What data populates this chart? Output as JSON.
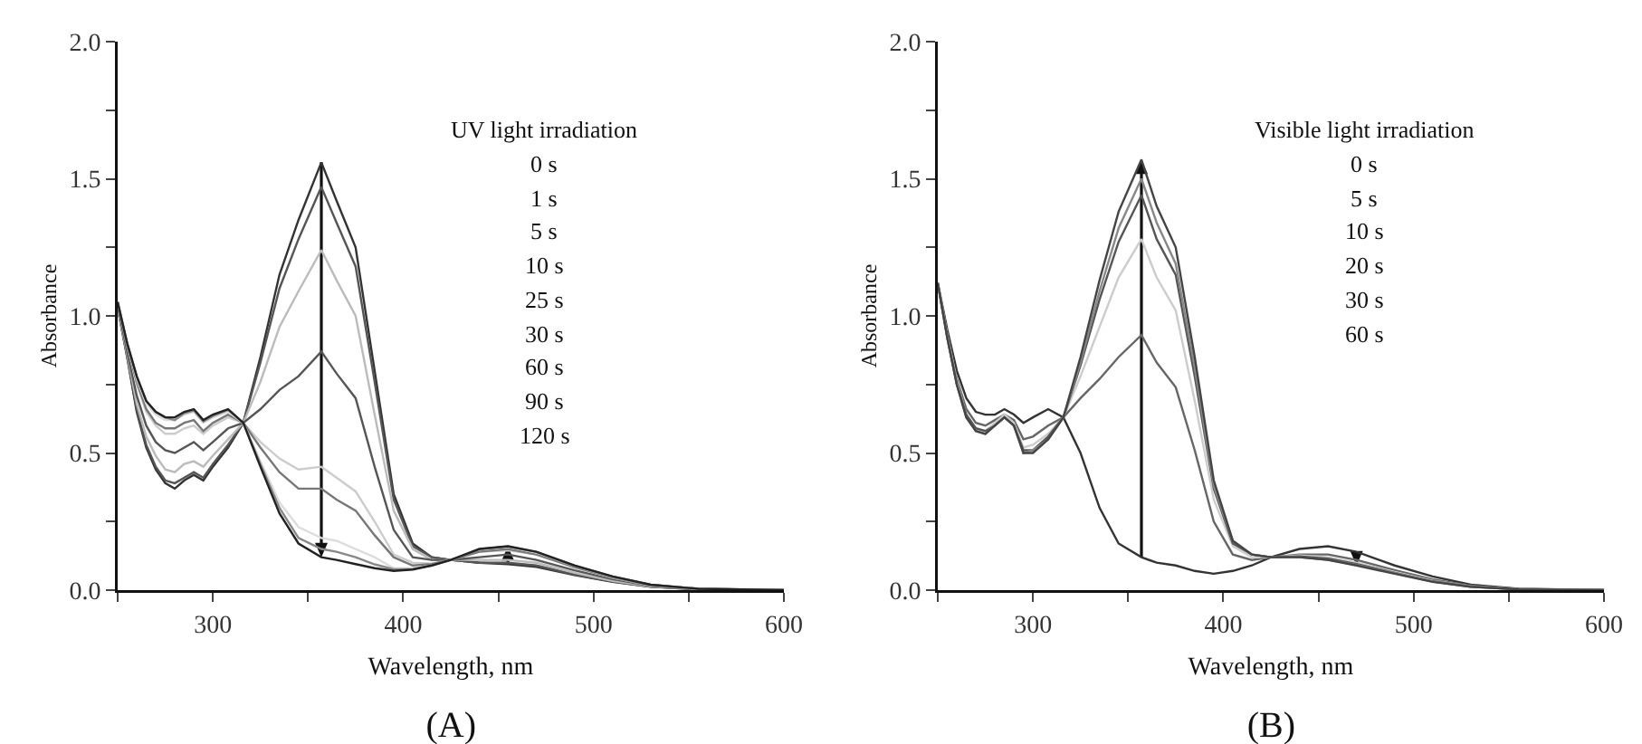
{
  "chart_data": [
    {
      "type": "line",
      "title": "(A)",
      "xlabel": "Wavelength, nm",
      "ylabel": "Absorbance",
      "x": [
        250,
        255,
        260,
        265,
        270,
        275,
        280,
        285,
        290,
        295,
        300,
        308,
        316,
        325,
        335,
        345,
        357,
        365,
        375,
        385,
        395,
        405,
        415,
        425,
        440,
        455,
        470,
        490,
        510,
        530,
        555,
        600
      ],
      "xlim": [
        250,
        600
      ],
      "ylim": [
        0,
        2
      ],
      "xticks": [
        {
          "value": 250,
          "label": null
        },
        300,
        {
          "value": 350,
          "label": null
        },
        400,
        {
          "value": 450,
          "label": null
        },
        500,
        {
          "value": 550,
          "label": null
        },
        600
      ],
      "yticks": [
        "0.0",
        {
          "value": 0.25,
          "label": null
        },
        {
          "value": 0.5,
          "label": "0.5"
        },
        {
          "value": 0.75,
          "label": null
        },
        {
          "value": 1,
          "label": "1.0"
        },
        {
          "value": 1.25,
          "label": null
        },
        {
          "value": 1.5,
          "label": "1.5"
        },
        {
          "value": 1.75,
          "label": null
        },
        {
          "value": 2,
          "label": "2.0"
        }
      ],
      "annotations": [
        "UV light irradiation",
        "0 s",
        "1 s",
        "5 s",
        "10 s",
        "25 s",
        "30 s",
        "60 s",
        "90 s",
        "120 s"
      ],
      "series": [
        {
          "color": "#333333",
          "values": [
            1.03,
            0.85,
            0.65,
            0.52,
            0.44,
            0.39,
            0.37,
            0.4,
            0.42,
            0.4,
            0.45,
            0.52,
            0.61,
            0.85,
            1.15,
            1.35,
            1.56,
            1.42,
            1.25,
            0.8,
            0.35,
            0.17,
            0.12,
            0.11,
            0.1,
            0.095,
            0.085,
            0.055,
            0.03,
            0.012,
            0.003,
            0
          ]
        },
        {
          "color": "#555555",
          "values": [
            1.03,
            0.85,
            0.66,
            0.53,
            0.45,
            0.4,
            0.39,
            0.41,
            0.43,
            0.41,
            0.46,
            0.53,
            0.61,
            0.83,
            1.1,
            1.28,
            1.47,
            1.34,
            1.18,
            0.76,
            0.33,
            0.16,
            0.12,
            0.11,
            0.1,
            0.1,
            0.09,
            0.057,
            0.031,
            0.013,
            0.003,
            0
          ]
        },
        {
          "color": "#bbbbbb",
          "values": [
            1.03,
            0.86,
            0.68,
            0.56,
            0.49,
            0.44,
            0.43,
            0.46,
            0.47,
            0.45,
            0.49,
            0.55,
            0.61,
            0.76,
            0.96,
            1.09,
            1.24,
            1.13,
            1.0,
            0.64,
            0.29,
            0.15,
            0.11,
            0.11,
            0.11,
            0.11,
            0.1,
            0.063,
            0.034,
            0.014,
            0.004,
            0
          ]
        },
        {
          "color": "#555555",
          "values": [
            1.04,
            0.87,
            0.71,
            0.6,
            0.54,
            0.51,
            0.5,
            0.52,
            0.54,
            0.51,
            0.54,
            0.59,
            0.61,
            0.66,
            0.73,
            0.78,
            0.87,
            0.79,
            0.7,
            0.45,
            0.22,
            0.12,
            0.11,
            0.11,
            0.12,
            0.13,
            0.11,
            0.072,
            0.04,
            0.016,
            0.004,
            0
          ]
        },
        {
          "color": "#cccccc",
          "values": [
            1.05,
            0.89,
            0.75,
            0.65,
            0.6,
            0.57,
            0.57,
            0.59,
            0.6,
            0.57,
            0.6,
            0.63,
            0.61,
            0.54,
            0.48,
            0.44,
            0.45,
            0.41,
            0.36,
            0.25,
            0.13,
            0.1,
            0.097,
            0.11,
            0.14,
            0.145,
            0.13,
            0.082,
            0.045,
            0.018,
            0.005,
            0
          ]
        },
        {
          "color": "#777777",
          "values": [
            1.05,
            0.89,
            0.76,
            0.66,
            0.61,
            0.59,
            0.59,
            0.61,
            0.62,
            0.58,
            0.61,
            0.64,
            0.61,
            0.52,
            0.43,
            0.37,
            0.37,
            0.33,
            0.29,
            0.2,
            0.12,
            0.09,
            0.095,
            0.11,
            0.14,
            0.15,
            0.13,
            0.084,
            0.047,
            0.019,
            0.005,
            0
          ]
        },
        {
          "color": "#dddddd",
          "values": [
            1.05,
            0.9,
            0.77,
            0.68,
            0.64,
            0.62,
            0.62,
            0.64,
            0.65,
            0.61,
            0.63,
            0.65,
            0.61,
            0.47,
            0.32,
            0.23,
            0.19,
            0.18,
            0.15,
            0.12,
            0.08,
            0.08,
            0.09,
            0.11,
            0.15,
            0.157,
            0.137,
            0.088,
            0.049,
            0.02,
            0.005,
            0
          ]
        },
        {
          "color": "#888888",
          "values": [
            1.05,
            0.9,
            0.78,
            0.69,
            0.65,
            0.63,
            0.62,
            0.645,
            0.655,
            0.615,
            0.635,
            0.657,
            0.61,
            0.46,
            0.3,
            0.19,
            0.15,
            0.14,
            0.12,
            0.094,
            0.076,
            0.077,
            0.09,
            0.11,
            0.149,
            0.159,
            0.139,
            0.089,
            0.05,
            0.02,
            0.005,
            0
          ]
        },
        {
          "color": "#222222",
          "values": [
            1.05,
            0.9,
            0.78,
            0.69,
            0.65,
            0.63,
            0.63,
            0.65,
            0.66,
            0.62,
            0.64,
            0.66,
            0.61,
            0.45,
            0.28,
            0.17,
            0.12,
            0.11,
            0.095,
            0.08,
            0.07,
            0.075,
            0.09,
            0.11,
            0.15,
            0.16,
            0.14,
            0.09,
            0.05,
            0.02,
            0.005,
            0
          ]
        }
      ]
    },
    {
      "type": "line",
      "title": "(B)",
      "xlabel": "Wavelength, nm",
      "ylabel": "Absorbance",
      "x": [
        250,
        255,
        260,
        265,
        270,
        275,
        280,
        285,
        290,
        295,
        300,
        308,
        316,
        325,
        335,
        345,
        357,
        365,
        375,
        385,
        395,
        405,
        415,
        425,
        440,
        455,
        470,
        490,
        510,
        530,
        555,
        600
      ],
      "xlim": [
        250,
        600
      ],
      "ylim": [
        0,
        2
      ],
      "xticks": [
        {
          "value": 250,
          "label": null
        },
        300,
        {
          "value": 350,
          "label": null
        },
        400,
        {
          "value": 450,
          "label": null
        },
        500,
        {
          "value": 550,
          "label": null
        },
        600
      ],
      "yticks": [
        "0.0",
        {
          "value": 0.25,
          "label": null
        },
        {
          "value": 0.5,
          "label": "0.5"
        },
        {
          "value": 0.75,
          "label": null
        },
        {
          "value": 1,
          "label": "1.0"
        },
        {
          "value": 1.25,
          "label": null
        },
        {
          "value": 1.5,
          "label": "1.5"
        },
        {
          "value": 1.75,
          "label": null
        },
        {
          "value": 2,
          "label": "2.0"
        }
      ],
      "annotations": [
        "Visible light irradiation",
        "0 s",
        "5 s",
        "10 s",
        "20 s",
        "30 s",
        "60 s"
      ],
      "series": [
        {
          "color": "#333333",
          "values": [
            1.12,
            0.95,
            0.8,
            0.7,
            0.65,
            0.64,
            0.64,
            0.66,
            0.64,
            0.61,
            0.63,
            0.66,
            0.63,
            0.5,
            0.3,
            0.17,
            0.12,
            0.1,
            0.09,
            0.07,
            0.06,
            0.07,
            0.09,
            0.12,
            0.15,
            0.16,
            0.14,
            0.09,
            0.05,
            0.02,
            0.005,
            0
          ]
        },
        {
          "color": "#666666",
          "values": [
            1.12,
            0.93,
            0.77,
            0.66,
            0.61,
            0.6,
            0.62,
            0.64,
            0.62,
            0.55,
            0.56,
            0.6,
            0.63,
            0.7,
            0.77,
            0.85,
            0.93,
            0.83,
            0.74,
            0.51,
            0.25,
            0.13,
            0.11,
            0.12,
            0.13,
            0.13,
            0.11,
            0.073,
            0.039,
            0.016,
            0.004,
            0
          ]
        },
        {
          "color": "#cccccc",
          "values": [
            1.12,
            0.93,
            0.76,
            0.64,
            0.59,
            0.58,
            0.61,
            0.64,
            0.61,
            0.52,
            0.53,
            0.57,
            0.63,
            0.78,
            0.96,
            1.14,
            1.28,
            1.14,
            1.02,
            0.69,
            0.33,
            0.16,
            0.12,
            0.12,
            0.126,
            0.12,
            0.1,
            0.066,
            0.034,
            0.014,
            0.003,
            0
          ]
        },
        {
          "color": "#555555",
          "values": [
            1.12,
            0.92,
            0.75,
            0.64,
            0.59,
            0.58,
            0.6,
            0.63,
            0.6,
            0.51,
            0.51,
            0.56,
            0.63,
            0.82,
            1.06,
            1.27,
            1.44,
            1.28,
            1.15,
            0.78,
            0.37,
            0.17,
            0.13,
            0.12,
            0.123,
            0.115,
            0.095,
            0.063,
            0.032,
            0.013,
            0.003,
            0
          ]
        },
        {
          "color": "#888888",
          "values": [
            1.12,
            0.92,
            0.75,
            0.63,
            0.58,
            0.57,
            0.6,
            0.63,
            0.6,
            0.5,
            0.51,
            0.55,
            0.63,
            0.83,
            1.09,
            1.32,
            1.5,
            1.34,
            1.19,
            0.81,
            0.38,
            0.18,
            0.13,
            0.12,
            0.12,
            0.11,
            0.092,
            0.062,
            0.031,
            0.012,
            0.003,
            0
          ]
        },
        {
          "color": "#444444",
          "values": [
            1.12,
            0.92,
            0.75,
            0.63,
            0.58,
            0.57,
            0.6,
            0.63,
            0.6,
            0.5,
            0.5,
            0.55,
            0.63,
            0.85,
            1.13,
            1.38,
            1.57,
            1.4,
            1.25,
            0.85,
            0.4,
            0.18,
            0.13,
            0.12,
            0.12,
            0.11,
            0.09,
            0.06,
            0.03,
            0.012,
            0.003,
            0
          ]
        }
      ]
    }
  ]
}
